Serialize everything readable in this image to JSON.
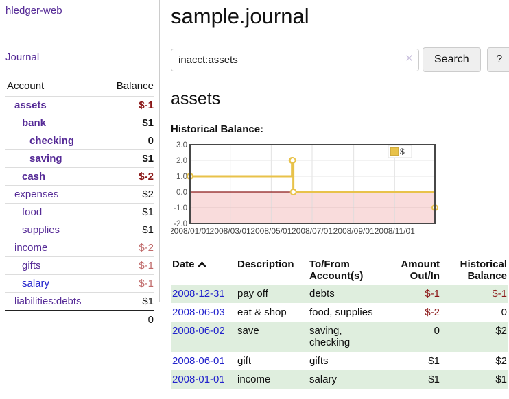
{
  "app": {
    "title": "hledger-web"
  },
  "colors": {
    "link_purple": "#552a96",
    "link_blue": "#2222cc",
    "negative_strong": "#8b1717",
    "negative_muted": "#c06a6a",
    "row_green": "#dfeede",
    "chart_line": "#e8c24a",
    "chart_negative_region": "#f9dcdc",
    "chart_zero_line": "#8b1a1a"
  },
  "sidebar": {
    "journal_link": "Journal",
    "accounts_table": {
      "headers": {
        "account": "Account",
        "balance": "Balance"
      },
      "rows": [
        {
          "name": "assets",
          "depth": 1,
          "bold": true,
          "name_color": "purple",
          "balance": "$-1",
          "balance_color": "darkred",
          "balance_bold": true
        },
        {
          "name": "bank",
          "depth": 2,
          "bold": true,
          "name_color": "purple",
          "balance": "$1",
          "balance_color": "black",
          "balance_bold": true
        },
        {
          "name": "checking",
          "depth": 3,
          "bold": true,
          "name_color": "purple",
          "balance": "0",
          "balance_color": "black",
          "balance_bold": true
        },
        {
          "name": "saving",
          "depth": 3,
          "bold": true,
          "name_color": "purple",
          "balance": "$1",
          "balance_color": "black",
          "balance_bold": true
        },
        {
          "name": "cash",
          "depth": 2,
          "bold": true,
          "name_color": "purple",
          "balance": "$-2",
          "balance_color": "darkred",
          "balance_bold": true
        },
        {
          "name": "expenses",
          "depth": 1,
          "bold": false,
          "name_color": "purple",
          "balance": "$2",
          "balance_color": "black",
          "balance_bold": false
        },
        {
          "name": "food",
          "depth": 2,
          "bold": false,
          "name_color": "purple",
          "balance": "$1",
          "balance_color": "black",
          "balance_bold": false
        },
        {
          "name": "supplies",
          "depth": 2,
          "bold": false,
          "name_color": "purple",
          "balance": "$1",
          "balance_color": "black",
          "balance_bold": false
        },
        {
          "name": "income",
          "depth": 1,
          "bold": false,
          "name_color": "purple",
          "balance": "$-2",
          "balance_color": "rose",
          "balance_bold": false
        },
        {
          "name": "gifts",
          "depth": 2,
          "bold": false,
          "name_color": "purple",
          "balance": "$-1",
          "balance_color": "rose",
          "balance_bold": false
        },
        {
          "name": "salary",
          "depth": 2,
          "bold": false,
          "name_color": "blue",
          "balance": "$-1",
          "balance_color": "rose",
          "balance_bold": false
        },
        {
          "name": "liabilities:debts",
          "depth": 1,
          "bold": false,
          "name_color": "purple",
          "balance": "$1",
          "balance_color": "black",
          "balance_bold": false
        }
      ],
      "total": "0"
    }
  },
  "main": {
    "title": "sample.journal",
    "search": {
      "value": "inacct:assets",
      "clear_icon": "×",
      "button_label": "Search",
      "help_label": "?"
    },
    "account_heading": "assets",
    "chart_label": "Historical Balance:",
    "register": {
      "headers": {
        "date": "Date",
        "description": "Description",
        "accounts": "To/From Account(s)",
        "amount": "Amount Out/In",
        "balance": "Historical Balance"
      },
      "sort": {
        "column": "date",
        "direction": "ascending"
      },
      "rows": [
        {
          "date": "2008-12-31",
          "description": "pay off",
          "accounts": "debts",
          "amount": "$-1",
          "balance": "$-1",
          "amount_neg": true,
          "balance_neg": true
        },
        {
          "date": "2008-06-03",
          "description": "eat & shop",
          "accounts": "food, supplies",
          "amount": "$-2",
          "balance": "0",
          "amount_neg": true,
          "balance_neg": false
        },
        {
          "date": "2008-06-02",
          "description": "save",
          "accounts": "saving, checking",
          "amount": "0",
          "balance": "$2",
          "amount_neg": false,
          "balance_neg": false
        },
        {
          "date": "2008-06-01",
          "description": "gift",
          "accounts": "gifts",
          "amount": "$1",
          "balance": "$2",
          "amount_neg": false,
          "balance_neg": false
        },
        {
          "date": "2008-01-01",
          "description": "income",
          "accounts": "salary",
          "amount": "$1",
          "balance": "$1",
          "amount_neg": false,
          "balance_neg": false
        }
      ]
    }
  },
  "chart_data": {
    "type": "line",
    "title": "Historical Balance:",
    "step": true,
    "legend_position": "top-right",
    "ylim": [
      -2,
      3
    ],
    "y_ticks": [
      "3.0",
      "2.0",
      "1.0",
      "0.0",
      "-1.0",
      "-2.0"
    ],
    "y_tick_values": [
      3,
      2,
      1,
      0,
      -1,
      -2
    ],
    "x_range_days": [
      0,
      365
    ],
    "x_ticks": [
      "2008/01/01",
      "2008/03/01",
      "2008/05/01",
      "2008/07/01",
      "2008/09/01",
      "2008/11/01"
    ],
    "x_tick_days": [
      0,
      60,
      121,
      182,
      244,
      305
    ],
    "series": [
      {
        "name": "$",
        "color": "#e8c24a",
        "points": [
          {
            "date": "2008-01-01",
            "day": 0,
            "value": 1
          },
          {
            "date": "2008-06-01",
            "day": 152,
            "value": 2
          },
          {
            "date": "2008-06-02",
            "day": 153,
            "value": 2
          },
          {
            "date": "2008-06-03",
            "day": 154,
            "value": 0
          },
          {
            "date": "2008-12-31",
            "day": 365,
            "value": -1
          }
        ]
      }
    ]
  }
}
